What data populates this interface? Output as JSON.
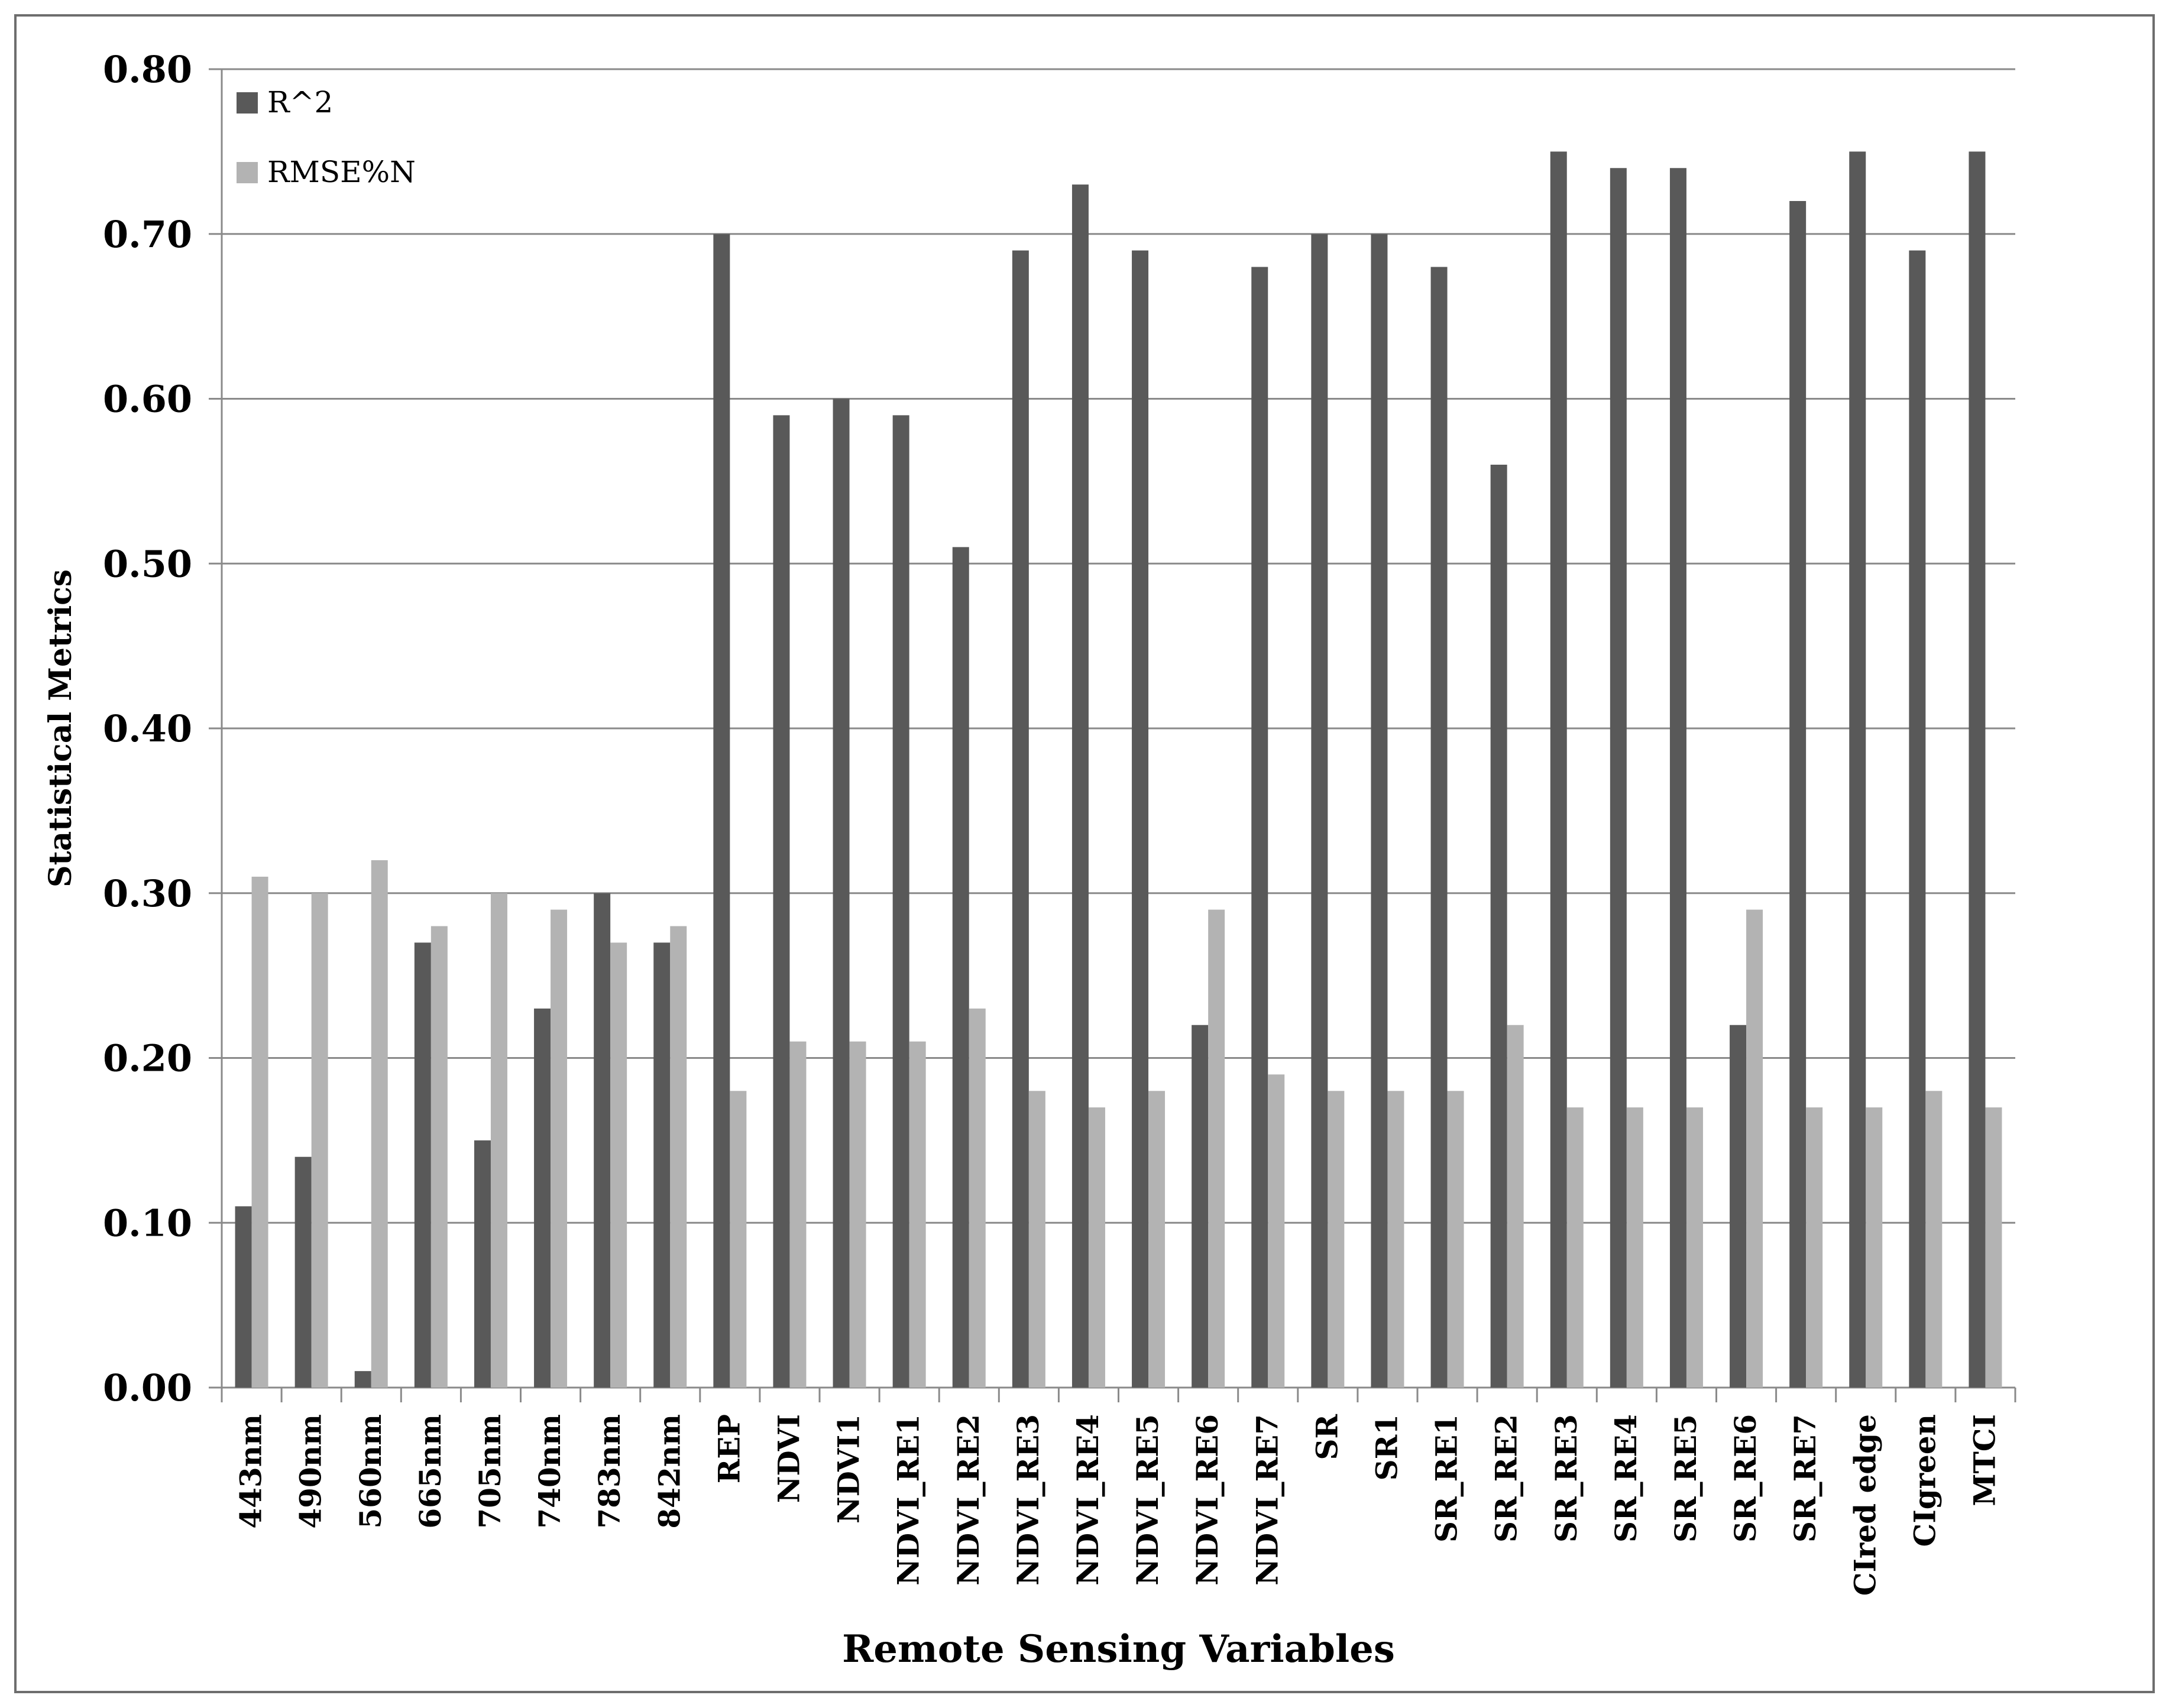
{
  "chart_data": {
    "type": "bar",
    "title": "",
    "xlabel": "Remote Sensing Variables",
    "ylabel": "Statistical Metrics",
    "ylim": [
      0,
      0.8
    ],
    "yticks": [
      "0.00",
      "0.10",
      "0.20",
      "0.30",
      "0.40",
      "0.50",
      "0.60",
      "0.70",
      "0.80"
    ],
    "grid": "horizontal",
    "legend_position": "top-left",
    "categories": [
      "443nm",
      "490nm",
      "560nm",
      "665nm",
      "705nm",
      "740nm",
      "783nm",
      "842nm",
      "REP",
      "NDVI",
      "NDVI1",
      "NDVI_RE1",
      "NDVI_RE2",
      "NDVI_RE3",
      "NDVI_RE4",
      "NDVI_RE5",
      "NDVI_RE6",
      "NDVI_RE7",
      "SR",
      "SR1",
      "SR_RE1",
      "SR_RE2",
      "SR_RE3",
      "SR_RE4",
      "SR_RE5",
      "SR_RE6",
      "SR_RE7",
      "CIred edge",
      "CIgreen",
      "MTCI"
    ],
    "series": [
      {
        "name": "R^2",
        "color": "#595959",
        "values": [
          0.11,
          0.14,
          0.01,
          0.27,
          0.15,
          0.23,
          0.3,
          0.27,
          0.7,
          0.59,
          0.6,
          0.59,
          0.51,
          0.69,
          0.73,
          0.69,
          0.22,
          0.68,
          0.7,
          0.7,
          0.68,
          0.56,
          0.75,
          0.74,
          0.74,
          0.22,
          0.72,
          0.75,
          0.69,
          0.75
        ]
      },
      {
        "name": "RMSE%N",
        "color": "#b3b3b3",
        "values": [
          0.31,
          0.3,
          0.32,
          0.28,
          0.3,
          0.29,
          0.27,
          0.28,
          0.18,
          0.21,
          0.21,
          0.21,
          0.23,
          0.18,
          0.17,
          0.18,
          0.29,
          0.19,
          0.18,
          0.18,
          0.18,
          0.22,
          0.17,
          0.17,
          0.17,
          0.29,
          0.17,
          0.17,
          0.18,
          0.17
        ]
      }
    ]
  }
}
